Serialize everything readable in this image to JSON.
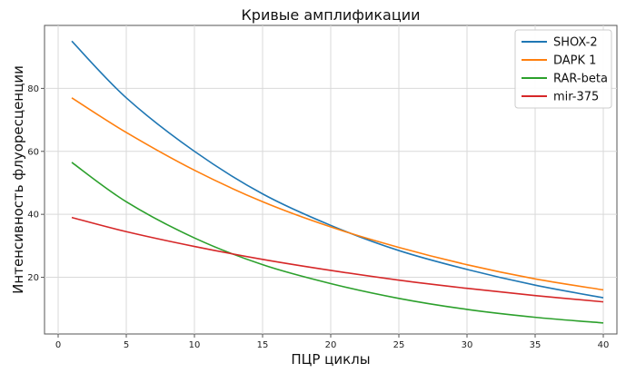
{
  "chart_data": {
    "type": "line",
    "title": "Кривые амплификации",
    "xlabel": "ПЦР циклы",
    "ylabel": "Интенсивность флуоресценции",
    "xlim": [
      -1,
      41
    ],
    "ylim": [
      2,
      100
    ],
    "xticks": [
      0,
      5,
      10,
      15,
      20,
      25,
      30,
      35,
      40
    ],
    "yticks": [
      20,
      40,
      60,
      80
    ],
    "grid": true,
    "legend": "top-right",
    "x": [
      1,
      5,
      10,
      15,
      20,
      25,
      30,
      35,
      40
    ],
    "series": [
      {
        "name": "SHOX-2",
        "color": "#1f77b4",
        "values": [
          95.0,
          77.0,
          60.0,
          46.5,
          36.5,
          28.5,
          22.5,
          17.5,
          13.5
        ]
      },
      {
        "name": "DAPK 1",
        "color": "#ff7f0e",
        "values": [
          77.0,
          66.0,
          54.0,
          44.0,
          36.0,
          29.5,
          24.0,
          19.5,
          16.0
        ]
      },
      {
        "name": "RAR-beta",
        "color": "#2ca02c",
        "values": [
          56.5,
          44.0,
          32.5,
          24.0,
          18.0,
          13.3,
          9.8,
          7.3,
          5.5
        ]
      },
      {
        "name": "mir-375",
        "color": "#d62728",
        "values": [
          39.0,
          34.5,
          29.8,
          25.7,
          22.2,
          19.1,
          16.5,
          14.2,
          12.2
        ]
      }
    ]
  }
}
